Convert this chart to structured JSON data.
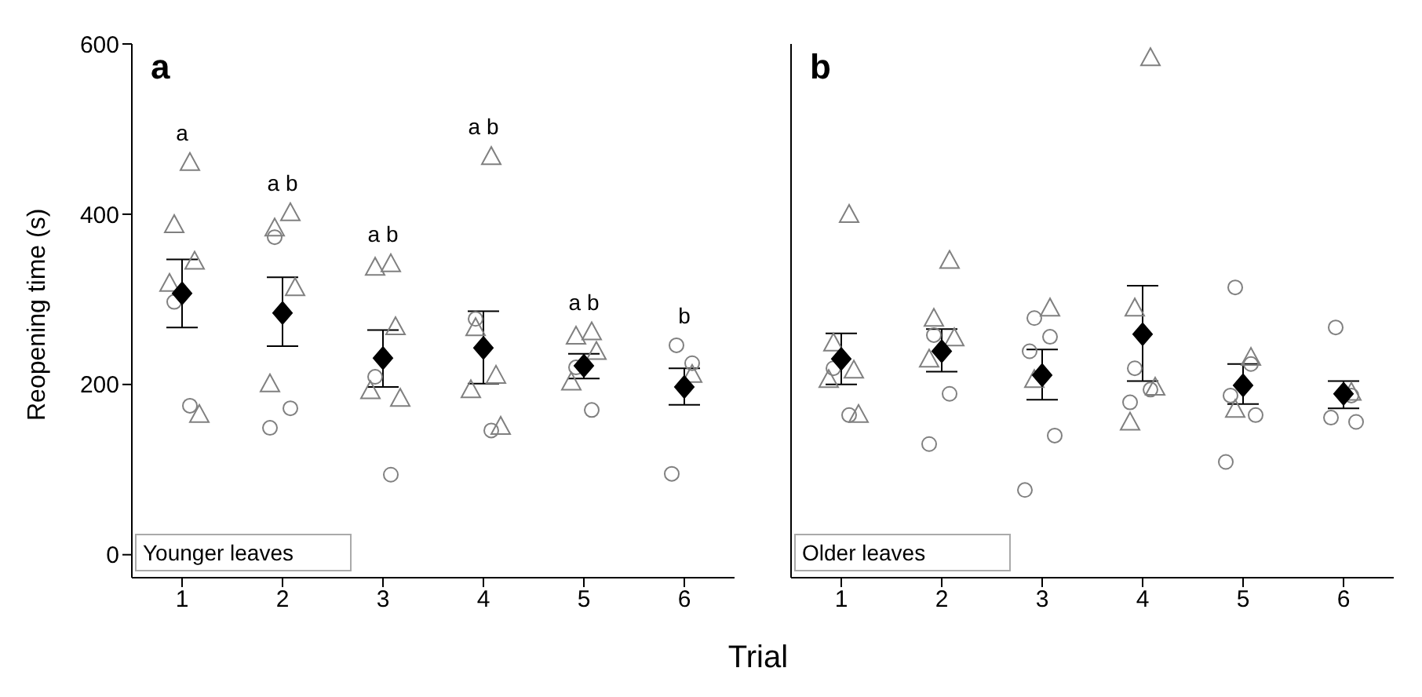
{
  "chart_data": [
    {
      "type": "scatter",
      "categories": [
        "1",
        "2",
        "3",
        "4",
        "5",
        "6"
      ],
      "xlabel": "Trial",
      "ylabel": "Reopening time (s)",
      "ylim": [
        -27,
        600
      ],
      "yticks": [
        0,
        200,
        400,
        600
      ],
      "legend": false,
      "grid": false,
      "annotations": [
        "a",
        "Younger leaves",
        "a",
        "a b",
        "a b",
        "a b",
        "a b",
        "b"
      ],
      "series": [
        {
          "marker": "triangle",
          "color": "#808080",
          "x": [
            "1",
            "1",
            "1",
            "1",
            "1",
            "2",
            "2",
            "2",
            "2",
            "3",
            "3",
            "3",
            "3",
            "3",
            "4",
            "4",
            "4",
            "4",
            "4",
            "5",
            "5",
            "5",
            "5",
            "6"
          ],
          "values": [
            461,
            388,
            345,
            319,
            165,
            402,
            384,
            314,
            201,
            342,
            338,
            268,
            193,
            184,
            468,
            267,
            211,
            194,
            151,
            262,
            257,
            239,
            203,
            212
          ]
        },
        {
          "marker": "circle",
          "color": "#808080",
          "x": [
            "1",
            "1",
            "2",
            "2",
            "2",
            "3",
            "3",
            "4",
            "4",
            "5",
            "5",
            "6",
            "6",
            "6"
          ],
          "values": [
            297,
            175,
            373,
            172,
            149,
            209,
            94,
            277,
            146,
            220,
            170,
            246,
            225,
            95
          ]
        },
        {
          "marker": "diamond",
          "color": "#000000",
          "x": [
            "1",
            "2",
            "3",
            "4",
            "5",
            "6"
          ],
          "values": [
            307,
            284,
            231,
            243,
            222,
            197
          ],
          "errors": [
            [
              267,
              347
            ],
            [
              245,
              326
            ],
            [
              197,
              264
            ],
            [
              201,
              286
            ],
            [
              207,
              236
            ],
            [
              176,
              219
            ]
          ]
        }
      ]
    },
    {
      "type": "scatter",
      "categories": [
        "1",
        "2",
        "3",
        "4",
        "5",
        "6"
      ],
      "ylim": [
        -27,
        600
      ],
      "yticks": [
        0,
        200,
        400,
        600
      ],
      "tick_labels": "x",
      "legend": false,
      "grid": false,
      "annotations": [
        "b",
        "Older leaves"
      ],
      "series": [
        {
          "marker": "triangle",
          "color": "#808080",
          "x": [
            "1",
            "1",
            "1",
            "1",
            "1",
            "2",
            "2",
            "2",
            "2",
            "3",
            "3",
            "4",
            "4",
            "4",
            "4",
            "5",
            "5",
            "6"
          ],
          "values": [
            400,
            249,
            217,
            206,
            165,
            346,
            278,
            255,
            230,
            290,
            206,
            584,
            290,
            197,
            156,
            232,
            171,
            191
          ]
        },
        {
          "marker": "circle",
          "color": "#808080",
          "x": [
            "1",
            "1",
            "2",
            "2",
            "2",
            "3",
            "3",
            "3",
            "3",
            "3",
            "4",
            "4",
            "4",
            "5",
            "5",
            "5",
            "5",
            "5",
            "6",
            "6",
            "6",
            "6"
          ],
          "values": [
            219,
            164,
            258,
            189,
            130,
            278,
            256,
            239,
            140,
            76,
            219,
            194,
            179,
            314,
            224,
            187,
            164,
            109,
            267,
            187,
            161,
            156
          ]
        },
        {
          "marker": "diamond",
          "color": "#000000",
          "x": [
            "1",
            "2",
            "3",
            "4",
            "5",
            "6"
          ],
          "values": [
            230,
            239,
            211,
            259,
            199,
            189
          ],
          "errors": [
            [
              200,
              260
            ],
            [
              215,
              265
            ],
            [
              182,
              241
            ],
            [
              204,
              316
            ],
            [
              177,
              224
            ],
            [
              172,
              204
            ]
          ]
        }
      ]
    }
  ]
}
